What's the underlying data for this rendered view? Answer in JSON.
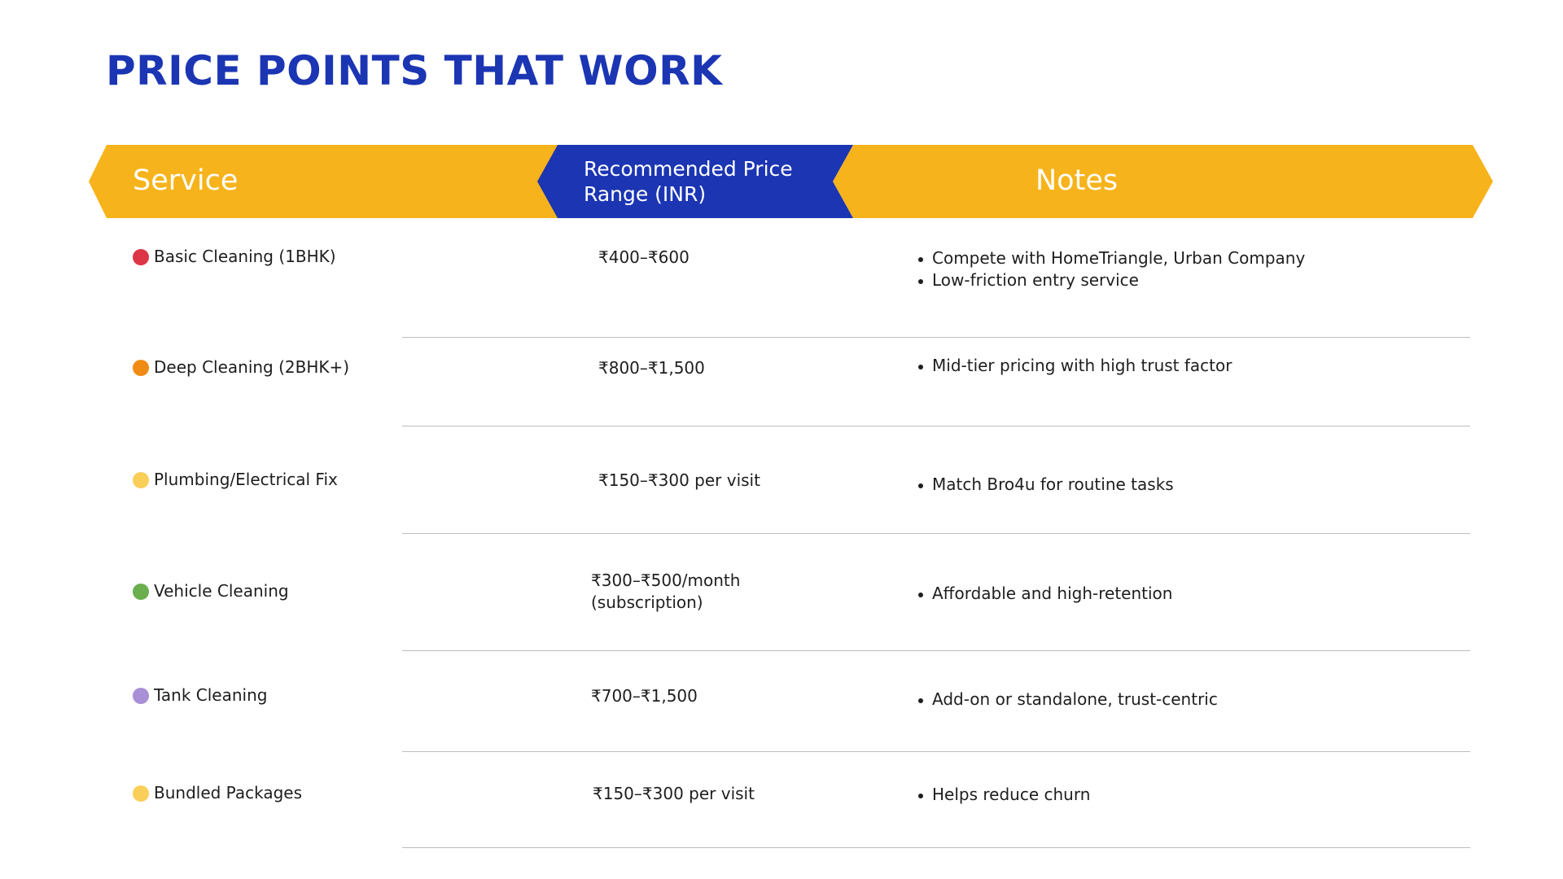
{
  "title": "PRICE POINTS THAT WORK",
  "colors": {
    "accent_yellow": "#f7b31b",
    "accent_blue": "#1b35b3"
  },
  "table": {
    "headers": {
      "service": "Service",
      "price": "Recommended Price Range (INR)",
      "notes": "Notes"
    },
    "rows": [
      {
        "service": "Basic Cleaning (1BHK)",
        "dot_color": "#dc3545",
        "price": "₹400–₹600",
        "notes": [
          "Compete with HomeTriangle, Urban Company",
          "Low-friction entry service"
        ]
      },
      {
        "service": "Deep Cleaning (2BHK+)",
        "dot_color": "#f08c14",
        "price": "₹800–₹1,500",
        "notes": [
          "Mid-tier pricing with high trust factor"
        ]
      },
      {
        "service": "Plumbing/Electrical Fix",
        "dot_color": "#f9cf5a",
        "price": "₹150–₹300 per visit",
        "notes": [
          "Match Bro4u for routine tasks"
        ]
      },
      {
        "service": "Vehicle Cleaning",
        "dot_color": "#6aae4e",
        "price": "₹300–₹500/month (subscription)",
        "notes": [
          "Affordable and high-retention"
        ]
      },
      {
        "service": "Tank Cleaning",
        "dot_color": "#a98fd6",
        "price": "₹700–₹1,500",
        "notes": [
          "Add-on or standalone, trust-centric"
        ]
      },
      {
        "service": "Bundled Packages",
        "dot_color": "#f9cf5a",
        "price": "₹150–₹300 per visit",
        "notes": [
          "Helps reduce churn"
        ]
      }
    ]
  }
}
